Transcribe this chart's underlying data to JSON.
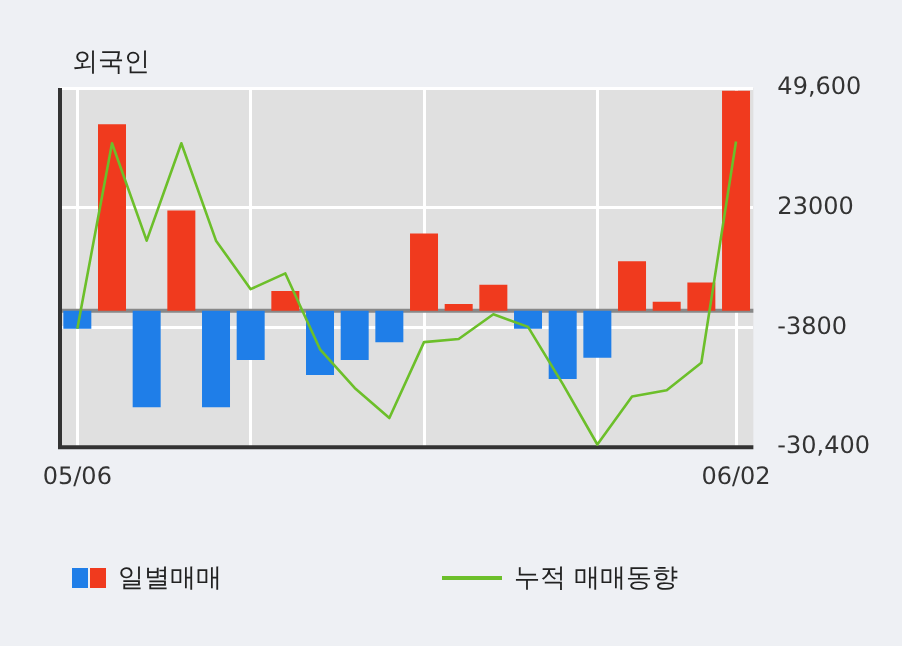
{
  "chart_data": {
    "type": "bar",
    "title": "외국인",
    "categories": [
      "05/06",
      null,
      null,
      null,
      null,
      null,
      null,
      null,
      null,
      null,
      null,
      null,
      null,
      null,
      null,
      null,
      null,
      null,
      null,
      "06/02"
    ],
    "series": [
      {
        "name": "일별매매",
        "colors": [
          "#1f7ee8",
          "#f03a1e",
          "#1f7ee8",
          "#f03a1e",
          "#1f7ee8",
          "#1f7ee8",
          "#f03a1e",
          "#1f7ee8",
          "#1f7ee8",
          "#1f7ee8",
          "#f03a1e",
          "#f03a1e",
          "#f03a1e",
          "#1f7ee8",
          "#1f7ee8",
          "#1f7ee8",
          "#f03a1e",
          "#f03a1e",
          "#f03a1e",
          "#f03a1e"
        ],
        "values": [
          -4000,
          41500,
          -21500,
          22300,
          -21500,
          -11000,
          4400,
          -14300,
          -11000,
          -7000,
          17200,
          1500,
          5800,
          -4000,
          -15200,
          -10500,
          11000,
          2000,
          6300,
          49000
        ]
      },
      {
        "type": "line",
        "name": "누적 매매동향",
        "color": "#6cbf2a",
        "values": [
          -4000,
          37300,
          15600,
          37300,
          15600,
          4800,
          8300,
          -8600,
          -17200,
          -23900,
          -7000,
          -6300,
          -800,
          -3600,
          -16300,
          -29800,
          -19100,
          -17700,
          -11600,
          37700
        ]
      }
    ],
    "ylim": [
      -30400,
      49600
    ],
    "yticks": [
      {
        "value": 49600,
        "label": "49,600"
      },
      23000,
      -3800,
      {
        "value": -30400,
        "label": "-30,400"
      }
    ],
    "grid": true,
    "legend": "bottom",
    "marker": "none"
  }
}
